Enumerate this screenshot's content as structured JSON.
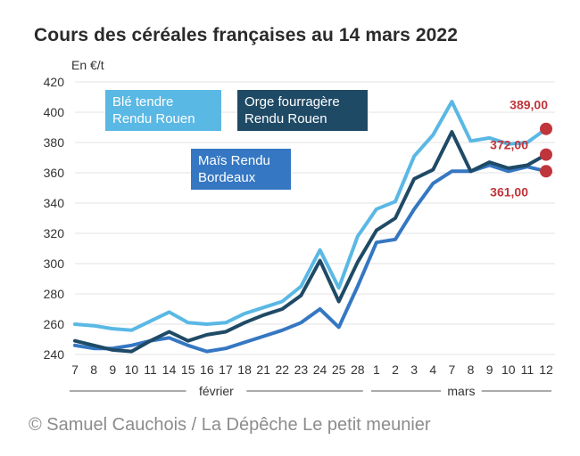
{
  "chart_data": {
    "type": "line",
    "title": "Cours des céréales françaises au 14 mars 2022",
    "unit_label": "En €/t",
    "ylim": [
      240,
      420
    ],
    "yticks": [
      240,
      260,
      280,
      300,
      320,
      340,
      360,
      380,
      400,
      420
    ],
    "categories": [
      "7",
      "8",
      "9",
      "10",
      "11",
      "14",
      "15",
      "16",
      "17",
      "18",
      "21",
      "22",
      "23",
      "24",
      "25",
      "28",
      "1",
      "2",
      "3",
      "4",
      "7",
      "8",
      "9",
      "10",
      "11",
      "12"
    ],
    "month_groups": [
      {
        "label": "février",
        "start_index": 0,
        "end_index": 15
      },
      {
        "label": "mars",
        "start_index": 16,
        "end_index": 25
      }
    ],
    "grid": true,
    "series": [
      {
        "name": "Blé tendre Rendu Rouen",
        "color": "#5ab8e4",
        "values": [
          260,
          259,
          257,
          256,
          262,
          268,
          261,
          260,
          261,
          267,
          271,
          275,
          285,
          309,
          284,
          318,
          336,
          341,
          371,
          385,
          407,
          381,
          383,
          379,
          380,
          389
        ],
        "end_label": "389,00"
      },
      {
        "name": "Orge fourragère Rendu Rouen",
        "color": "#1f4a66",
        "values": [
          249,
          246,
          243,
          242,
          249,
          255,
          249,
          253,
          255,
          261,
          266,
          270,
          279,
          302,
          275,
          301,
          322,
          330,
          356,
          362,
          387,
          361,
          367,
          363,
          365,
          372
        ],
        "end_label": "372,00"
      },
      {
        "name": "Maïs Rendu Bordeaux",
        "color": "#3577c2",
        "values": [
          246,
          244,
          244,
          246,
          249,
          251,
          246,
          242,
          244,
          248,
          252,
          256,
          261,
          270,
          258,
          285,
          314,
          316,
          336,
          353,
          361,
          361,
          365,
          361,
          364,
          361
        ],
        "end_label": "361,00"
      }
    ]
  },
  "credit": "© Samuel Cauchois / La Dépêche Le petit meunier"
}
